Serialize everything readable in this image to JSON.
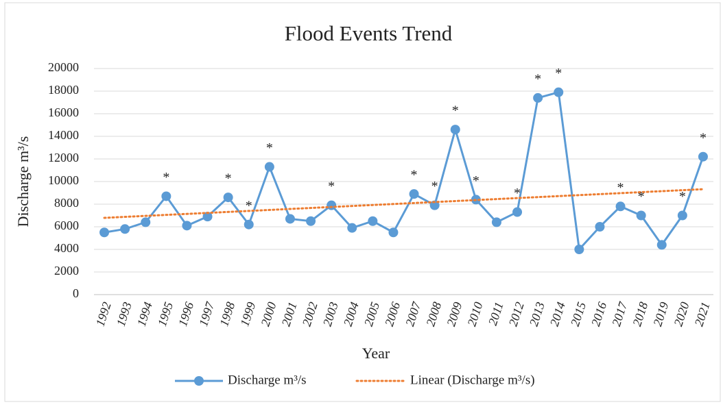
{
  "chart_data": {
    "type": "line",
    "title": "Flood Events Trend",
    "x_label": "Year",
    "y_label": "Discharge m³/s",
    "categories": [
      "1992",
      "1993",
      "1994",
      "1995",
      "1996",
      "1997",
      "1998",
      "1999",
      "2000",
      "2001",
      "2002",
      "2003",
      "2004",
      "2005",
      "2006",
      "2007",
      "2008",
      "2009",
      "2010",
      "2011",
      "2012",
      "2013",
      "2014",
      "2015",
      "2016",
      "2017",
      "2018",
      "2019",
      "2020",
      "2021"
    ],
    "series": [
      {
        "name": "Discharge m³/s",
        "color": "#5b9bd5",
        "values": [
          5500,
          5800,
          6400,
          8700,
          6100,
          6900,
          8600,
          6200,
          11300,
          6700,
          6500,
          7900,
          5900,
          6500,
          5500,
          8900,
          7900,
          14600,
          8400,
          6400,
          7300,
          17400,
          17900,
          4000,
          6000,
          7800,
          7000,
          4400,
          7000,
          12200
        ]
      }
    ],
    "trendline": {
      "name": "Linear (Discharge m³/s)",
      "color": "#ed7d31"
    },
    "annotations": [
      {
        "category": "1995",
        "text": "*"
      },
      {
        "category": "1998",
        "text": "*"
      },
      {
        "category": "1999",
        "text": "*"
      },
      {
        "category": "2000",
        "text": "*"
      },
      {
        "category": "2003",
        "text": "*"
      },
      {
        "category": "2007",
        "text": "*"
      },
      {
        "category": "2008",
        "text": "*"
      },
      {
        "category": "2009",
        "text": "*"
      },
      {
        "category": "2010",
        "text": "*"
      },
      {
        "category": "2012",
        "text": "*"
      },
      {
        "category": "2013",
        "text": "*"
      },
      {
        "category": "2014",
        "text": "*"
      },
      {
        "category": "2017",
        "text": "*"
      },
      {
        "category": "2018",
        "text": "*"
      },
      {
        "category": "2020",
        "text": "*"
      },
      {
        "category": "2021",
        "text": "*"
      }
    ],
    "ylim": [
      0,
      20000
    ],
    "yticks": [
      0,
      2000,
      4000,
      6000,
      8000,
      10000,
      12000,
      14000,
      16000,
      18000,
      20000
    ],
    "grid": true,
    "legend": "bottom"
  }
}
